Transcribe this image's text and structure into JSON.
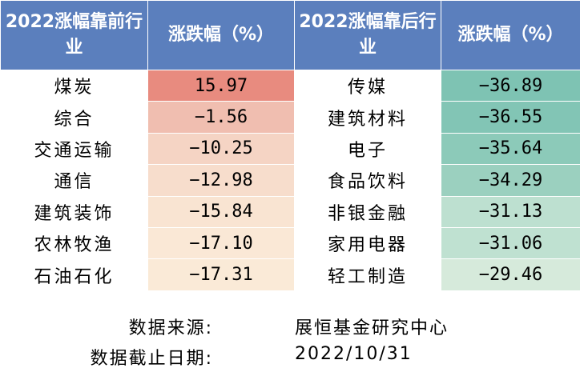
{
  "headers": {
    "top_industry": "2022涨幅靠前行业",
    "top_change": "涨跌幅（%）",
    "bottom_industry": "2022涨幅靠后行业",
    "bottom_change": "涨跌幅（%）"
  },
  "top": [
    {
      "industry": "煤炭",
      "change": "15.97",
      "value": 15.97,
      "color": "#e88b7f"
    },
    {
      "industry": "综合",
      "change": "-1.56",
      "value": -1.56,
      "color": "#f0beb0"
    },
    {
      "industry": "交通运输",
      "change": "-10.25",
      "value": -10.25,
      "color": "#f5d4c4"
    },
    {
      "industry": "通信",
      "change": "-12.98",
      "value": -12.98,
      "color": "#f7ddcc"
    },
    {
      "industry": "建筑装饰",
      "change": "-15.84",
      "value": -15.84,
      "color": "#f9e4d2"
    },
    {
      "industry": "农林牧渔",
      "change": "-17.10",
      "value": -17.1,
      "color": "#fae8d6"
    },
    {
      "industry": "石油石化",
      "change": "-17.31",
      "value": -17.31,
      "color": "#faead7"
    }
  ],
  "bottom": [
    {
      "industry": "传媒",
      "change": "-36.89",
      "value": -36.89,
      "color": "#7ec3b3"
    },
    {
      "industry": "建筑材料",
      "change": "-36.55",
      "value": -36.55,
      "color": "#82c5b5"
    },
    {
      "industry": "电子",
      "change": "-35.64",
      "value": -35.64,
      "color": "#8ccab9"
    },
    {
      "industry": "食品饮料",
      "change": "-34.29",
      "value": -34.29,
      "color": "#9bd0bf"
    },
    {
      "industry": "非银金融",
      "change": "-31.13",
      "value": -31.13,
      "color": "#bde0d0"
    },
    {
      "industry": "家用电器",
      "change": "-31.06",
      "value": -31.06,
      "color": "#bfe1d1"
    },
    {
      "industry": "轻工制造",
      "change": "-29.46",
      "value": -29.46,
      "color": "#d6eadb"
    }
  ],
  "footer": {
    "source_label": "数据来源:",
    "source_value": "展恒基金研究中心",
    "date_label": "数据截止日期:",
    "date_value": "2022/10/31"
  }
}
